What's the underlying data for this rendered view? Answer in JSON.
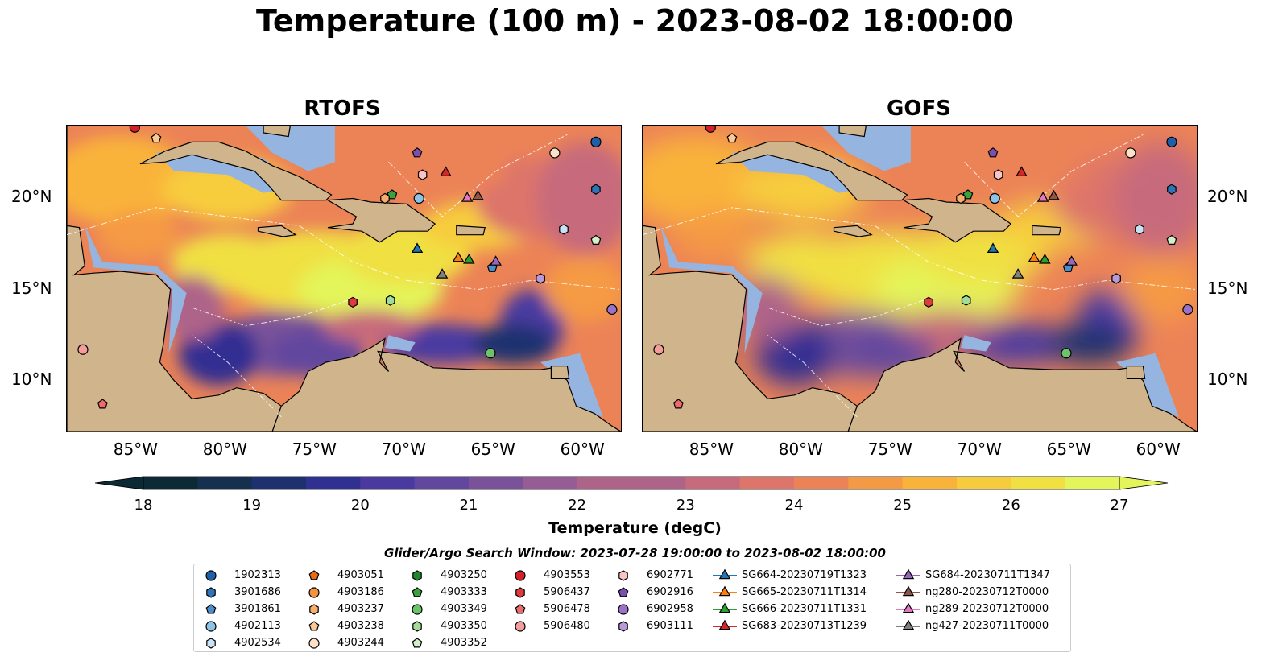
{
  "title": "Temperature (100 m) - 2023-08-02 18:00:00",
  "panels": [
    {
      "title": "RTOFS",
      "variant": "rtofs"
    },
    {
      "title": "GOFS",
      "variant": "gofs"
    }
  ],
  "lon_ticks": [
    "85°W",
    "80°W",
    "75°W",
    "70°W",
    "65°W",
    "60°W"
  ],
  "lat_ticks": [
    "20°N",
    "15°N",
    "10°N"
  ],
  "colorbar": {
    "label": "Temperature (degC)",
    "min": 18,
    "max": 27,
    "step": 0.5,
    "extend": "both",
    "ticks": [
      "18",
      "19",
      "20",
      "21",
      "22",
      "23",
      "24",
      "25",
      "26",
      "27"
    ]
  },
  "search_window": "Glider/Argo Search Window: 2023-07-28 19:00:00 to 2023-08-02 18:00:00",
  "legend": [
    {
      "label": "1902313",
      "marker": "circle",
      "color": "#1f5fa8"
    },
    {
      "label": "3901686",
      "marker": "hexagon",
      "color": "#2f73b8"
    },
    {
      "label": "3901861",
      "marker": "pentagon",
      "color": "#4a8fcc"
    },
    {
      "label": "4902113",
      "marker": "circle",
      "color": "#8ec3e8"
    },
    {
      "label": "4902534",
      "marker": "hexagon",
      "color": "#c9e3f5"
    },
    {
      "label": "4903051",
      "marker": "pentagon",
      "color": "#e86b10"
    },
    {
      "label": "4903186",
      "marker": "circle",
      "color": "#f5923e"
    },
    {
      "label": "4903237",
      "marker": "hexagon",
      "color": "#f9ad6c"
    },
    {
      "label": "4903238",
      "marker": "pentagon",
      "color": "#fbc896"
    },
    {
      "label": "4903244",
      "marker": "circle",
      "color": "#fde0c5"
    },
    {
      "label": "4903250",
      "marker": "hexagon",
      "color": "#22872a"
    },
    {
      "label": "4903333",
      "marker": "pentagon",
      "color": "#3aa13d"
    },
    {
      "label": "4903349",
      "marker": "circle",
      "color": "#6cc46a"
    },
    {
      "label": "4903350",
      "marker": "hexagon",
      "color": "#a2dc98"
    },
    {
      "label": "4903352",
      "marker": "pentagon",
      "color": "#d3f0c9"
    },
    {
      "label": "4903553",
      "marker": "circle",
      "color": "#d4202a"
    },
    {
      "label": "5906437",
      "marker": "hexagon",
      "color": "#e2393f"
    },
    {
      "label": "5906478",
      "marker": "pentagon",
      "color": "#ee6b6b"
    },
    {
      "label": "5906480",
      "marker": "circle",
      "color": "#f59c9c"
    },
    {
      "label": "6902771",
      "marker": "hexagon",
      "color": "#fbc4c4"
    },
    {
      "label": "6902916",
      "marker": "pentagon",
      "color": "#7a4fb0"
    },
    {
      "label": "6902958",
      "marker": "circle",
      "color": "#9a72c8"
    },
    {
      "label": "6903111",
      "marker": "hexagon",
      "color": "#b99ad9"
    },
    {
      "label": "SG664-20230719T1323",
      "marker": "triangle",
      "color": "#1f77b4",
      "line": true
    },
    {
      "label": "SG665-20230711T1314",
      "marker": "triangle",
      "color": "#ff7f0e",
      "line": true
    },
    {
      "label": "SG666-20230711T1331",
      "marker": "triangle",
      "color": "#2ca02c",
      "line": true
    },
    {
      "label": "SG683-20230713T1239",
      "marker": "triangle",
      "color": "#d62728",
      "line": true
    },
    {
      "label": "SG684-20230711T1347",
      "marker": "triangle",
      "color": "#9467bd",
      "line": true
    },
    {
      "label": "ng280-20230712T0000",
      "marker": "triangle",
      "color": "#8c564b",
      "line": true
    },
    {
      "label": "ng289-20230712T0000",
      "marker": "triangle",
      "color": "#e377c2",
      "line": true
    },
    {
      "label": "ng427-20230711T0000",
      "marker": "triangle",
      "color": "#7f7f7f",
      "line": true
    }
  ],
  "map_markers": [
    {
      "id": "1902313",
      "lon": -59.4,
      "lat": 23.1
    },
    {
      "id": "3901686",
      "lon": -59.4,
      "lat": 20.5
    },
    {
      "id": "4903244",
      "lon": -61.7,
      "lat": 22.5
    },
    {
      "id": "4903333",
      "lon": -70.8,
      "lat": 20.2
    },
    {
      "id": "4903237",
      "lon": -71.2,
      "lat": 20.0
    },
    {
      "id": "4902113",
      "lon": -69.3,
      "lat": 20.0
    },
    {
      "id": "6902771",
      "lon": -69.1,
      "lat": 21.3
    },
    {
      "id": "6902916",
      "lon": -69.4,
      "lat": 22.5
    },
    {
      "id": "4903238",
      "lon": -84.0,
      "lat": 23.3
    },
    {
      "id": "4903553",
      "lon": -85.2,
      "lat": 23.9
    },
    {
      "id": "4902534",
      "lon": -61.2,
      "lat": 18.3
    },
    {
      "id": "4903352",
      "lon": -59.4,
      "lat": 17.7
    },
    {
      "id": "3901861",
      "lon": -65.2,
      "lat": 16.2
    },
    {
      "id": "6903111",
      "lon": -62.5,
      "lat": 15.6
    },
    {
      "id": "6902958",
      "lon": -58.5,
      "lat": 13.9
    },
    {
      "id": "5906437",
      "lon": -73.0,
      "lat": 14.3
    },
    {
      "id": "4903350",
      "lon": -70.9,
      "lat": 14.4
    },
    {
      "id": "4903349",
      "lon": -65.3,
      "lat": 11.5
    },
    {
      "id": "5906480",
      "lon": -88.1,
      "lat": 11.7
    },
    {
      "id": "5906478",
      "lon": -87.0,
      "lat": 8.7
    },
    {
      "id": "SG664-20230719T1323",
      "lon": -69.4,
      "lat": 17.2
    },
    {
      "id": "SG665-20230711T1314",
      "lon": -67.1,
      "lat": 16.7
    },
    {
      "id": "SG666-20230711T1331",
      "lon": -66.5,
      "lat": 16.6
    },
    {
      "id": "SG683-20230713T1239",
      "lon": -67.8,
      "lat": 21.4
    },
    {
      "id": "SG684-20230711T1347",
      "lon": -65.0,
      "lat": 16.5
    },
    {
      "id": "ng280-20230712T0000",
      "lon": -66.0,
      "lat": 20.1
    },
    {
      "id": "ng289-20230712T0000",
      "lon": -66.6,
      "lat": 20.0
    },
    {
      "id": "ng427-20230711T0000",
      "lon": -68.0,
      "lat": 15.8
    }
  ],
  "colors": {
    "land": "#cfb48c",
    "shelf": "#95b4e0",
    "cmap": [
      "#0b2a36",
      "#14304e",
      "#1e3070",
      "#302f92",
      "#4a3aa0",
      "#62479e",
      "#7a529a",
      "#955c95",
      "#ae6489",
      "#c76a7b",
      "#dd756a",
      "#ec8357",
      "#f59a44",
      "#f9b33a",
      "#f7cc3c",
      "#f0e042",
      "#e3f55a"
    ]
  }
}
